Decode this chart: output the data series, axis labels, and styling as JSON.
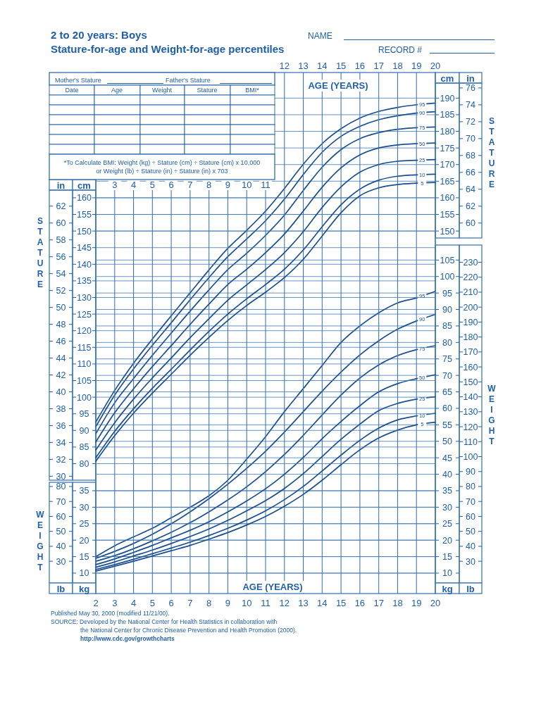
{
  "chart_data": [
    {
      "type": "line",
      "title": "2 to 20 years: Boys",
      "subtitle": "Stature-for-age and Weight-for-age percentiles",
      "x2label": "AGE (YEARS)",
      "ylabel": "cm",
      "y2label": "in",
      "x": [
        2,
        3,
        4,
        5,
        6,
        7,
        8,
        9,
        10,
        11,
        12,
        13,
        14,
        15,
        16,
        17,
        18,
        19,
        20
      ],
      "xlim": [
        2,
        20
      ],
      "xticks": [
        3,
        4,
        5,
        6,
        7,
        8,
        9,
        10,
        11
      ],
      "x2lim": [
        2,
        20
      ],
      "x2ticks": [
        12,
        13,
        14,
        15,
        16,
        17,
        18,
        19,
        20
      ],
      "ylim": [
        40.9,
        197.7
      ],
      "yticks": [
        80,
        85,
        90,
        95,
        100,
        105,
        110,
        115,
        120,
        125,
        130,
        135,
        140,
        145,
        150,
        155,
        160
      ],
      "y2lim": [
        16.1,
        77.83
      ],
      "y2ticks": [
        30,
        32,
        34,
        36,
        38,
        40,
        42,
        44,
        46,
        48,
        50,
        52,
        54,
        56,
        58,
        60,
        62
      ],
      "grid": "y",
      "series": [
        {
          "name": "5",
          "color": "#1a4f90",
          "values": [
            80.7,
            88.4,
            95.2,
            101.2,
            106.9,
            112.6,
            118.0,
            123.1,
            127.6,
            131.6,
            136.0,
            141.5,
            148.5,
            155.5,
            160.6,
            163.0,
            164.0,
            164.4,
            164.6
          ]
        },
        {
          "name": "10",
          "color": "#1a4f90",
          "values": [
            81.8,
            89.7,
            96.5,
            102.7,
            108.4,
            114.2,
            119.8,
            125.0,
            129.6,
            133.9,
            138.5,
            144.3,
            151.3,
            157.9,
            162.6,
            165.3,
            166.5,
            166.9,
            167.1
          ]
        },
        {
          "name": "25",
          "color": "#1a4f90",
          "values": [
            84.1,
            92.3,
            99.4,
            105.8,
            111.8,
            117.9,
            123.6,
            129.2,
            133.8,
            138.4,
            143.5,
            149.8,
            157.1,
            163.3,
            167.7,
            170.0,
            171.0,
            171.3,
            171.5
          ]
        },
        {
          "name": "50",
          "color": "#1a4f90",
          "values": [
            86.5,
            95.3,
            102.5,
            109.2,
            115.5,
            121.9,
            128.0,
            133.9,
            138.5,
            143.5,
            149.1,
            156.0,
            163.2,
            169.0,
            172.9,
            175.0,
            175.9,
            176.3,
            176.5
          ]
        }
      ],
      "annotations": [
        "NAME",
        "RECORD #",
        "Mother's Stature",
        "Father's Stature",
        "Date",
        "Age",
        "Weight",
        "Stature",
        "BMI*",
        "*To Calculate BMI: Weight (kg) ÷ Stature (cm) ÷ Stature (cm) x 10,000",
        "or Weight (lb) ÷ Stature (in) ÷ Stature (in) x 703",
        "STATURE",
        "STATURE"
      ]
    },
    {
      "type": "line",
      "xlabel": "AGE (YEARS)",
      "ylabel": "kg",
      "y2label": "lb",
      "x": [
        2,
        3,
        4,
        5,
        6,
        7,
        8,
        9,
        10,
        11,
        12,
        13,
        14,
        15,
        16,
        17,
        18,
        19,
        20
      ],
      "xlim": [
        2,
        20
      ],
      "xticks": [
        2,
        3,
        4,
        5,
        6,
        7,
        8,
        9,
        10,
        11,
        12,
        13,
        14,
        15,
        16,
        17,
        18,
        19,
        20
      ],
      "ylim": [
        3.8,
        161.9
      ],
      "yticks": [
        10,
        15,
        20,
        25,
        30,
        35
      ],
      "y2lim": [
        8.4,
        356.9
      ],
      "y2ticks": [
        30,
        40,
        50,
        60,
        70,
        80
      ],
      "grid": true,
      "series": [
        {
          "name": "5",
          "color": "#1a4f90",
          "values": [
            10.6,
            12.1,
            13.6,
            15.2,
            16.8,
            18.4,
            20.3,
            22.3,
            24.6,
            27.2,
            30.3,
            33.9,
            38.2,
            42.9,
            47.4,
            51.0,
            53.4,
            55.0,
            55.8
          ]
        },
        {
          "name": "10",
          "color": "#1a4f90",
          "values": [
            11.1,
            12.6,
            14.2,
            15.9,
            17.6,
            19.4,
            21.4,
            23.6,
            26.1,
            28.9,
            32.3,
            36.3,
            41.0,
            45.8,
            50.3,
            54.0,
            56.5,
            57.7,
            58.5
          ]
        },
        {
          "name": "25",
          "color": "#1a4f90",
          "values": [
            11.8,
            13.4,
            15.2,
            17.0,
            19.0,
            21.1,
            23.4,
            26.0,
            28.9,
            32.0,
            35.7,
            40.2,
            45.4,
            50.6,
            55.2,
            59.3,
            61.5,
            62.8,
            63.5
          ]
        },
        {
          "name": "50",
          "color": "#1a4f90",
          "values": [
            12.6,
            14.3,
            16.3,
            18.4,
            20.7,
            23.0,
            25.6,
            28.6,
            31.9,
            35.6,
            40.0,
            45.1,
            50.8,
            56.0,
            60.8,
            65.0,
            67.5,
            69.0,
            70.2
          ]
        }
      ],
      "annotations": [
        "WEIGHT",
        "WEIGHT",
        "Published May 30, 2000 (modified 11/21/00).",
        "SOURCE: Developed by the National Center for Health Statistics in collaboration with",
        "the National Center for Chronic Disease Prevention and Health Promotion (2000).",
        "http://www.cdc.gov/growthcharts"
      ]
    },
    {
      "type": "line",
      "ylabel": "cm",
      "y2label": "in",
      "tick_labels": "y",
      "x": [
        2,
        3,
        4,
        5,
        6,
        7,
        8,
        9,
        10,
        11,
        12,
        13,
        14,
        15,
        16,
        17,
        18,
        19,
        20
      ],
      "xlim": [
        2,
        20
      ],
      "ylim": [
        40.9,
        197.7
      ],
      "yticks": [
        150,
        155,
        160,
        165,
        170,
        175,
        180,
        185,
        190
      ],
      "y2lim": [
        16.1,
        77.83
      ],
      "y2ticks": [
        60,
        62,
        64,
        66,
        68,
        70,
        72,
        74,
        76
      ],
      "grid": "y",
      "series": [
        {
          "name": "75",
          "color": "#1a4f90",
          "values": [
            89.0,
            98.3,
            105.6,
            112.6,
            119.3,
            125.9,
            132.3,
            138.4,
            143.3,
            148.7,
            154.8,
            162.2,
            169.2,
            174.5,
            177.8,
            179.6,
            180.6,
            181.1,
            181.3
          ]
        },
        {
          "name": "90",
          "color": "#1a4f90",
          "values": [
            91.1,
            100.6,
            108.5,
            115.6,
            122.4,
            129.3,
            136.0,
            142.3,
            147.6,
            153.1,
            159.6,
            167.0,
            173.7,
            178.5,
            181.5,
            183.5,
            184.7,
            185.5,
            185.9
          ]
        },
        {
          "name": "95",
          "color": "#1a4f90",
          "values": [
            92.5,
            102.0,
            110.2,
            117.5,
            124.5,
            131.4,
            138.3,
            144.8,
            150.2,
            156.0,
            162.8,
            170.1,
            176.3,
            180.8,
            184.0,
            186.0,
            187.2,
            188.0,
            188.5
          ]
        }
      ]
    },
    {
      "type": "line",
      "ylabel": "kg",
      "y2label": "lb",
      "tick_labels": "y",
      "x": [
        2,
        3,
        4,
        5,
        6,
        7,
        8,
        9,
        10,
        11,
        12,
        13,
        14,
        15,
        16,
        17,
        18,
        19,
        20
      ],
      "xlim": [
        2,
        20
      ],
      "ylim": [
        3.8,
        161.9
      ],
      "yticks": [
        10,
        15,
        20,
        25,
        30,
        35,
        40,
        45,
        50,
        55,
        60,
        65,
        70,
        75,
        80,
        85,
        90,
        95,
        100,
        105
      ],
      "y2lim": [
        8.4,
        356.9
      ],
      "y2ticks": [
        30,
        40,
        50,
        60,
        70,
        80,
        90,
        100,
        110,
        120,
        130,
        140,
        150,
        160,
        170,
        180,
        190,
        200,
        210,
        220,
        230
      ],
      "grid": "y",
      "series": [
        {
          "name": "75",
          "color": "#1a4f90",
          "values": [
            13.6,
            15.3,
            17.4,
            19.8,
            22.4,
            25.3,
            28.6,
            32.2,
            36.2,
            40.8,
            46.0,
            51.8,
            58.0,
            64.0,
            69.2,
            73.2,
            76.0,
            77.8,
            79.0
          ]
        },
        {
          "name": "90",
          "color": "#1a4f90",
          "values": [
            14.5,
            16.6,
            19.0,
            21.8,
            25.0,
            28.6,
            32.6,
            37.0,
            41.8,
            47.0,
            52.8,
            59.0,
            65.2,
            71.0,
            76.2,
            80.5,
            84.0,
            86.5,
            88.5
          ]
        },
        {
          "name": "95",
          "color": "#1a4f90",
          "values": [
            15.0,
            18.3,
            21.0,
            23.6,
            26.8,
            30.0,
            33.5,
            38.2,
            44.6,
            51.4,
            59.0,
            66.0,
            73.0,
            80.0,
            85.0,
            89.0,
            92.0,
            93.5,
            95.5
          ]
        }
      ]
    }
  ]
}
